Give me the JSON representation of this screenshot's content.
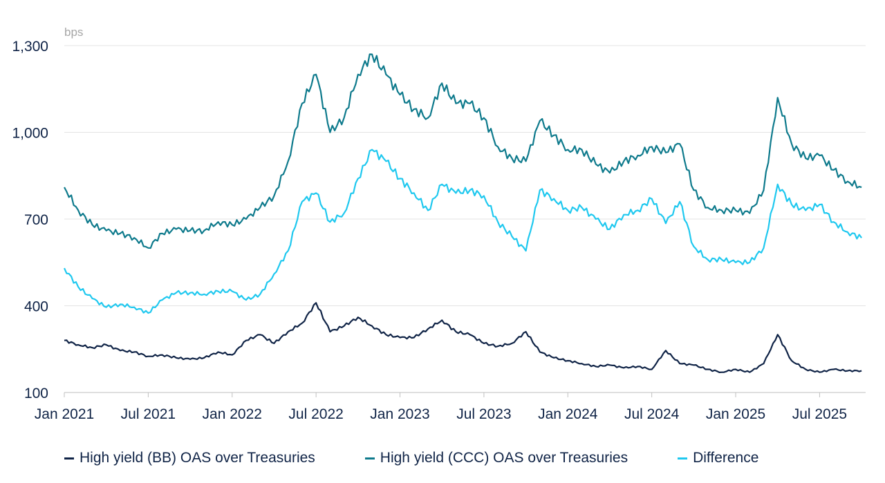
{
  "chart_data": {
    "type": "line",
    "ylabel": "bps",
    "ylim": [
      100,
      1300
    ],
    "yticks": [
      "100",
      "400",
      "700",
      "1,000",
      "1,300"
    ],
    "ytick_values": [
      100,
      400,
      700,
      1000,
      1300
    ],
    "xticks": [
      "Jan 2021",
      "Jul 2021",
      "Jan 2022",
      "Jul 2022",
      "Jan 2023",
      "Jul 2023",
      "Jan 2024",
      "Jul 2024",
      "Jan 2025",
      "Jul 2025"
    ],
    "xtick_dates": [
      "2021-01",
      "2021-07",
      "2022-01",
      "2022-07",
      "2023-01",
      "2023-07",
      "2024-01",
      "2024-07",
      "2025-01",
      "2025-07"
    ],
    "xlim": [
      "2021-01",
      "2025-10"
    ],
    "grid": "horizontal",
    "legend_position": "bottom",
    "start_month": "2021-01",
    "series": [
      {
        "name": "High yield (BB) OAS over Treasuries",
        "color": "#0f2346",
        "values": [
          280,
          265,
          255,
          265,
          245,
          240,
          225,
          230,
          220,
          215,
          220,
          240,
          230,
          280,
          300,
          270,
          310,
          340,
          410,
          310,
          330,
          360,
          330,
          300,
          290,
          290,
          320,
          350,
          310,
          300,
          270,
          260,
          270,
          310,
          240,
          220,
          210,
          200,
          190,
          195,
          185,
          190,
          180,
          245,
          200,
          195,
          180,
          170,
          180,
          170,
          200,
          300,
          210,
          180,
          170,
          180,
          175,
          175
        ]
      },
      {
        "name": "High yield (CCC) OAS over Treasuries",
        "color": "#0e7a8c",
        "values": [
          810,
          730,
          680,
          660,
          650,
          635,
          600,
          650,
          665,
          660,
          660,
          690,
          680,
          700,
          740,
          780,
          900,
          1100,
          1200,
          1000,
          1050,
          1200,
          1270,
          1200,
          1130,
          1080,
          1050,
          1170,
          1100,
          1100,
          1050,
          950,
          910,
          900,
          1040,
          990,
          940,
          940,
          890,
          860,
          900,
          920,
          950,
          930,
          960,
          800,
          740,
          730,
          730,
          720,
          800,
          1120,
          960,
          910,
          920,
          870,
          830,
          810
        ]
      },
      {
        "name": "Difference",
        "color": "#1ec8ef",
        "values": [
          530,
          465,
          425,
          395,
          405,
          395,
          375,
          420,
          445,
          445,
          440,
          450,
          450,
          420,
          440,
          510,
          590,
          760,
          790,
          690,
          720,
          840,
          940,
          900,
          840,
          790,
          730,
          820,
          790,
          800,
          780,
          690,
          640,
          590,
          800,
          770,
          730,
          740,
          700,
          665,
          715,
          730,
          770,
          685,
          760,
          605,
          560,
          560,
          550,
          550,
          600,
          820,
          750,
          730,
          750,
          690,
          655,
          635
        ]
      }
    ]
  }
}
